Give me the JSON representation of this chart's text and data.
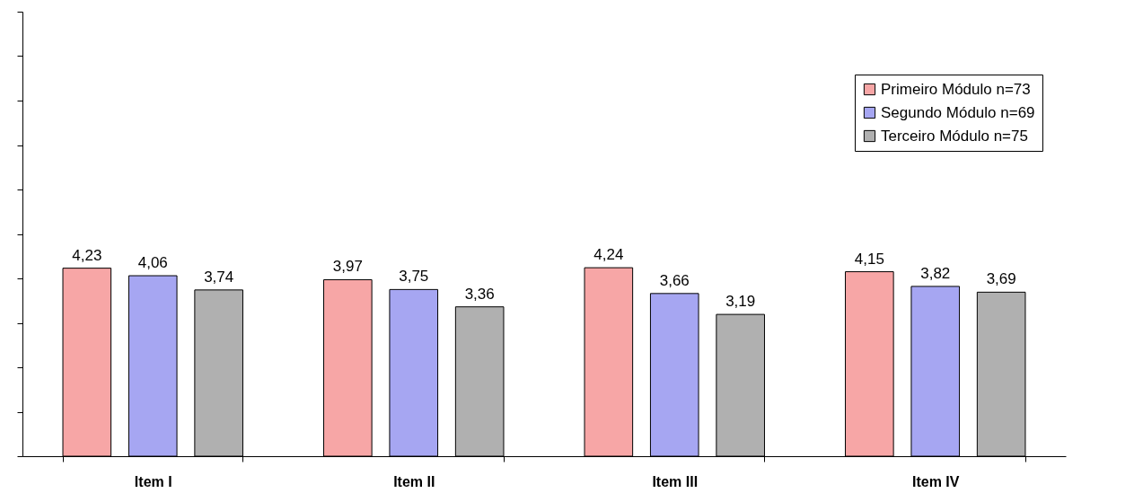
{
  "chart_data": {
    "type": "bar",
    "categories": [
      "Item I",
      "Item II",
      "Item III",
      "Item IV"
    ],
    "series": [
      {
        "name": "Primeiro Módulo n=73",
        "color": "#f7a6a6",
        "values": [
          4.23,
          3.97,
          4.24,
          4.15
        ],
        "value_labels": [
          "4,23",
          "3,97",
          "4,24",
          "4,15"
        ]
      },
      {
        "name": "Segundo Módulo n=69",
        "color": "#a6a6f2",
        "values": [
          4.06,
          3.75,
          3.66,
          3.82
        ],
        "value_labels": [
          "4,06",
          "3,75",
          "3,66",
          "3,82"
        ]
      },
      {
        "name": "Terceiro Módulo n=75",
        "color": "#b0b0b0",
        "values": [
          3.74,
          3.36,
          3.19,
          3.69
        ],
        "value_labels": [
          "3,74",
          "3,36",
          "3,19",
          "3,69"
        ]
      }
    ],
    "ylim": [
      0,
      10
    ],
    "yticks": [
      {
        "value": 0,
        "label": null
      },
      {
        "value": 1,
        "label": null
      },
      {
        "value": 2,
        "label": null
      },
      {
        "value": 3,
        "label": null
      },
      {
        "value": 4,
        "label": null
      },
      {
        "value": 5,
        "label": null
      },
      {
        "value": 6,
        "label": null
      },
      {
        "value": 7,
        "label": null
      },
      {
        "value": 8,
        "label": null
      },
      {
        "value": 9,
        "label": null
      },
      {
        "value": 10,
        "label": null
      }
    ],
    "tick_labels": "x",
    "grid": false,
    "legend": "top right"
  }
}
